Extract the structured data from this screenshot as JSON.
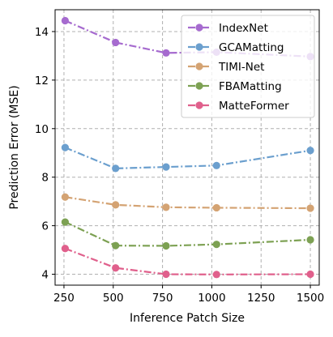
{
  "chart_data": {
    "type": "line",
    "title": "",
    "xlabel": "Inference Patch Size",
    "ylabel": "Prediction Error (MSE)",
    "xlim": [
      205,
      1545
    ],
    "ylim": [
      3.55,
      14.9
    ],
    "xticks": [
      250,
      500,
      750,
      1000,
      1250,
      1500
    ],
    "yticks": [
      4,
      6,
      8,
      10,
      12,
      14
    ],
    "grid": true,
    "grid_style": "dashed",
    "legend_position": "top-right",
    "x": [
      256,
      512,
      768,
      1024,
      1500
    ],
    "series": [
      {
        "name": "IndexNet",
        "color": "#a66bcf",
        "values": [
          14.45,
          13.55,
          13.12,
          13.15,
          12.97
        ]
      },
      {
        "name": "GCAMatting",
        "color": "#6b9fce",
        "values": [
          9.22,
          8.36,
          8.42,
          8.48,
          9.1
        ]
      },
      {
        "name": "TIMI-Net",
        "color": "#d4a373",
        "values": [
          7.18,
          6.86,
          6.76,
          6.74,
          6.72
        ]
      },
      {
        "name": "FBAMatting",
        "color": "#7da153",
        "values": [
          6.15,
          5.18,
          5.17,
          5.23,
          5.42
        ]
      },
      {
        "name": "MatteFormer",
        "color": "#e0608c",
        "values": [
          5.06,
          4.26,
          4.0,
          3.99,
          4.0
        ]
      }
    ]
  }
}
